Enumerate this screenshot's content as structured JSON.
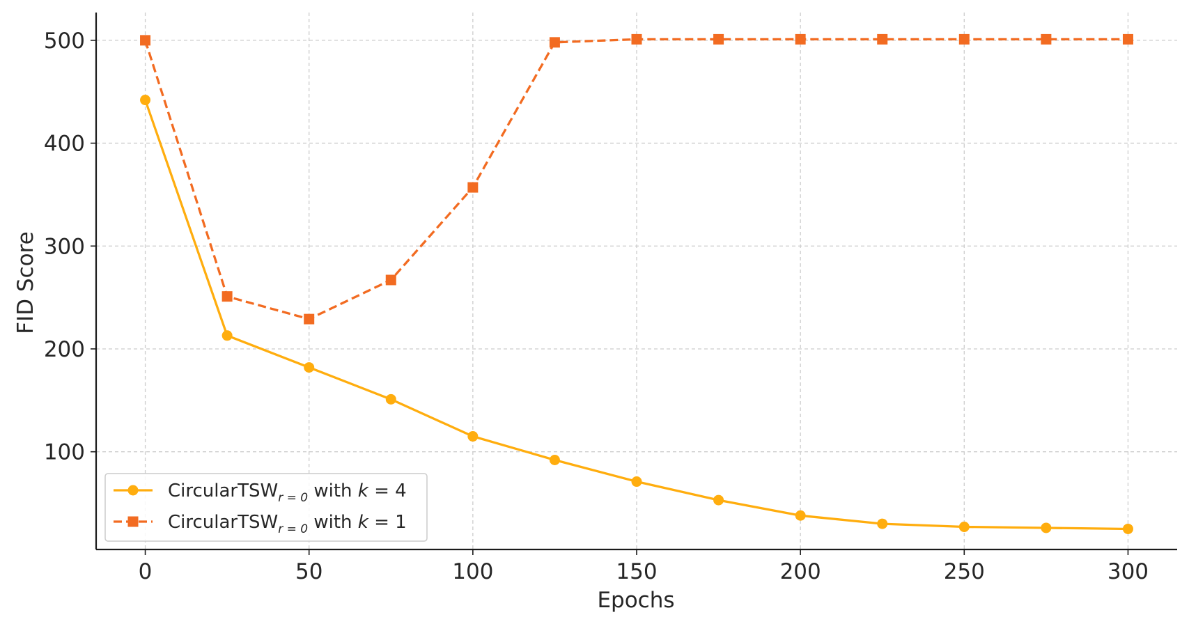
{
  "chart_data": {
    "type": "line",
    "title": "",
    "xlabel": "Epochs",
    "ylabel": "FID Score",
    "xlim": [
      -15,
      315
    ],
    "ylim": [
      5,
      527
    ],
    "xticks": [
      0,
      50,
      100,
      150,
      200,
      250,
      300
    ],
    "yticks": [
      100,
      200,
      300,
      400,
      500
    ],
    "grid": true,
    "legend_position": "lower-left",
    "x": [
      0,
      25,
      50,
      75,
      100,
      125,
      150,
      175,
      200,
      225,
      250,
      275,
      300
    ],
    "series": [
      {
        "name": "CircularTSW",
        "name_subscript": "r = 0",
        "name_suffix": " with ",
        "name_param": "k",
        "name_param_value": " = 4",
        "color": "#FFAD0E",
        "marker": "circle",
        "line_style": "solid",
        "values": [
          442,
          213,
          182,
          151,
          115,
          92,
          71,
          53,
          38,
          30,
          27,
          26,
          25
        ]
      },
      {
        "name": "CircularTSW",
        "name_subscript": "r = 0",
        "name_suffix": " with ",
        "name_param": "k",
        "name_param_value": " = 1",
        "color": "#F26B21",
        "marker": "square",
        "line_style": "dashed",
        "values": [
          500,
          251,
          229,
          267,
          357,
          498,
          501,
          501,
          501,
          501,
          501,
          501,
          501
        ]
      }
    ]
  }
}
